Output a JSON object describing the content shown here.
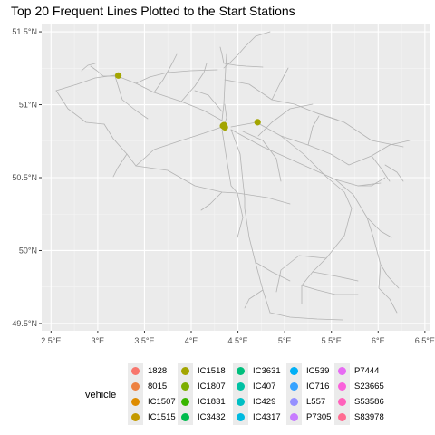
{
  "title": "Top 20 Frequent Lines Plotted to the Start Stations",
  "colors": {
    "panel": "#ebebeb",
    "grid_major": "#ffffff",
    "grid_minor": "#f5f5f5",
    "rail": "#b3b3b3",
    "station": "#a3a500"
  },
  "chart_data": {
    "type": "scatter",
    "x_ticks": [
      2.5,
      3,
      3.5,
      4,
      4.5,
      5,
      5.5,
      6,
      6.5
    ],
    "x_tick_labels": [
      "2.5°E",
      "3°E",
      "3.5°E",
      "4°E",
      "4.5°E",
      "5°E",
      "5.5°E",
      "6°E",
      "6.5°E"
    ],
    "y_ticks": [
      49.5,
      50,
      50.5,
      51,
      51.5
    ],
    "y_tick_labels": [
      "49.5°N",
      "50°N",
      "50.5°N",
      "51°N",
      "51.5°N"
    ],
    "xlim": [
      2.4,
      6.55
    ],
    "ylim": [
      49.45,
      51.55
    ],
    "grid": true,
    "stations": [
      {
        "x": 3.22,
        "y": 51.2
      },
      {
        "x": 4.71,
        "y": 50.88
      },
      {
        "x": 4.35,
        "y": 50.86
      },
      {
        "x": 4.36,
        "y": 50.845
      },
      {
        "x": 4.34,
        "y": 50.855
      }
    ],
    "legend": {
      "title": "vehicle",
      "placement": "bottom",
      "columns": [
        [
          {
            "label": "1828",
            "color": "#f8766d"
          },
          {
            "label": "8015",
            "color": "#ed8141"
          },
          {
            "label": "IC1507",
            "color": "#de8c00"
          },
          {
            "label": "IC1515",
            "color": "#c49a00"
          }
        ],
        [
          {
            "label": "IC1518",
            "color": "#a3a500"
          },
          {
            "label": "IC1807",
            "color": "#7cae00"
          },
          {
            "label": "IC1831",
            "color": "#39b600"
          },
          {
            "label": "IC3432",
            "color": "#00bb4e"
          }
        ],
        [
          {
            "label": "IC3631",
            "color": "#00bf7d"
          },
          {
            "label": "IC407",
            "color": "#00c1a3"
          },
          {
            "label": "IC429",
            "color": "#00bfc4"
          },
          {
            "label": "IC4317",
            "color": "#00bae0"
          }
        ],
        [
          {
            "label": "IC539",
            "color": "#00b0f6"
          },
          {
            "label": "IC716",
            "color": "#35a2ff"
          },
          {
            "label": "L557",
            "color": "#9590ff"
          },
          {
            "label": "P7305",
            "color": "#c77cff"
          }
        ],
        [
          {
            "label": "P7444",
            "color": "#e76bf3"
          },
          {
            "label": "S23665",
            "color": "#fa62db"
          },
          {
            "label": "S53586",
            "color": "#ff62bc"
          },
          {
            "label": "S83978",
            "color": "#ff6c91"
          }
        ]
      ]
    }
  }
}
